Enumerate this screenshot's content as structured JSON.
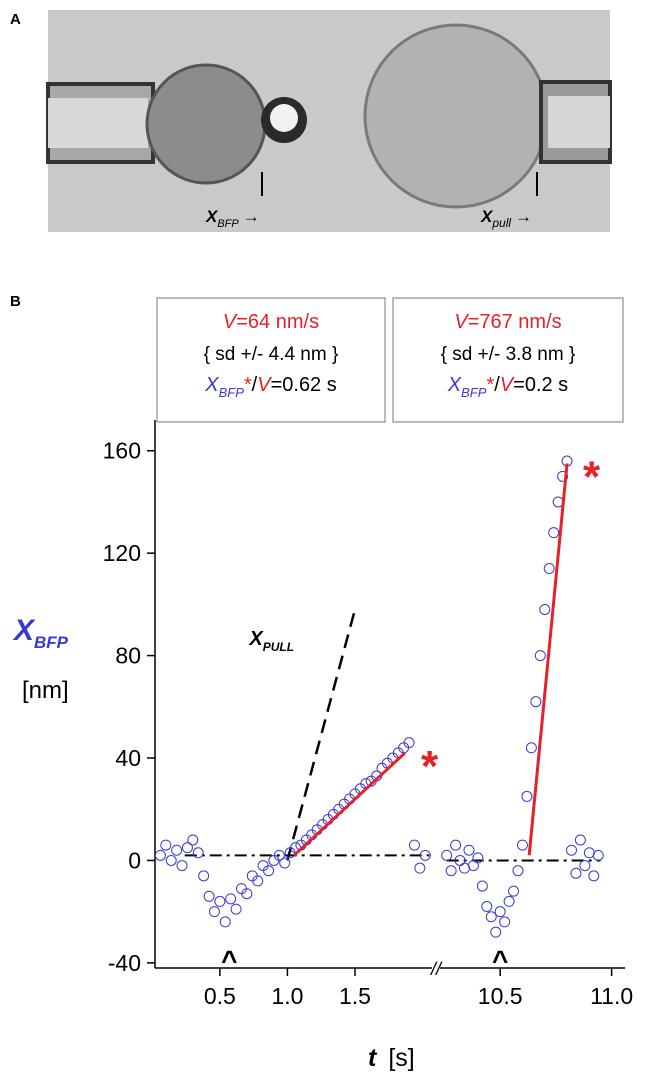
{
  "panel_labels": [
    "A",
    "B"
  ],
  "image_labels": {
    "bfp": [
      "X",
      "BFP",
      "→"
    ],
    "pull": [
      "X",
      "pull",
      "→"
    ]
  },
  "chart_data": {
    "type": "scatter",
    "color": "#3a3ad0",
    "fit_color": "#e8202a",
    "ylabel": [
      "X",
      "BFP"
    ],
    "yunit": "[nm]",
    "xlabel": [
      "t",
      "[s]"
    ],
    "break_label": "//",
    "ylim": [
      -42,
      172
    ],
    "yticks": [
      -40,
      0,
      40,
      80,
      120,
      160
    ],
    "pull_label": [
      "X",
      "PULL"
    ],
    "panels": [
      {
        "xlim": [
          0.02,
          2.07
        ],
        "xticks": [
          0.5,
          {
            "value": 1,
            "label": "1.0"
          },
          1.5
        ],
        "x": [
          0.06,
          0.1,
          0.14,
          0.18,
          0.22,
          0.26,
          0.3,
          0.34,
          0.38,
          0.42,
          0.46,
          0.5,
          0.54,
          0.58,
          0.62,
          0.66,
          0.7,
          0.74,
          0.78,
          0.82,
          0.86,
          0.9,
          0.94,
          0.98,
          1.02,
          1.06,
          1.1,
          1.14,
          1.18,
          1.22,
          1.26,
          1.3,
          1.34,
          1.38,
          1.42,
          1.46,
          1.5,
          1.54,
          1.58,
          1.62,
          1.66,
          1.7,
          1.74,
          1.78,
          1.82,
          1.86,
          1.9,
          1.94,
          1.98,
          2.02
        ],
        "values": [
          2,
          6,
          0,
          4,
          -2,
          5,
          8,
          3,
          -6,
          -14,
          -20,
          -16,
          -24,
          -15,
          -19,
          -11,
          -13,
          -6,
          -8,
          -2,
          -4,
          0,
          2,
          -1,
          3,
          5,
          6,
          8,
          10,
          12,
          14,
          16,
          18,
          20,
          22,
          24,
          26,
          28,
          30,
          31,
          33,
          36,
          38,
          40,
          42,
          44,
          46,
          6,
          -3,
          2
        ],
        "fit": {
          "x": [
            1.05,
            1.87
          ],
          "values": [
            2,
            42
          ]
        },
        "baseline": {
          "x": [
            0.24,
            2.05
          ],
          "values": [
            2,
            2
          ]
        },
        "pull": {
          "x": [
            1.0,
            1.5
          ],
          "values": [
            0,
            98
          ]
        },
        "asterisk": "*",
        "caret": {
          "x": 0.57,
          "label": "^"
        },
        "box": {
          "speed": [
            "V",
            "=64 nm/s"
          ],
          "sd": "{ sd +/- 4.4 nm }",
          "ratio": [
            "X",
            "BFP",
            "*",
            "/",
            "V",
            "=0.62 s"
          ]
        }
      },
      {
        "xlim": [
          10.23,
          11.06
        ],
        "xticks": [
          10.5,
          {
            "value": 11,
            "label": "11.0"
          }
        ],
        "x": [
          10.26,
          10.28,
          10.3,
          10.32,
          10.34,
          10.36,
          10.38,
          10.4,
          10.42,
          10.44,
          10.46,
          10.48,
          10.5,
          10.52,
          10.54,
          10.56,
          10.58,
          10.6,
          10.62,
          10.64,
          10.66,
          10.68,
          10.7,
          10.72,
          10.74,
          10.76,
          10.78,
          10.8,
          10.82,
          10.84,
          10.86,
          10.88,
          10.9,
          10.92,
          10.94
        ],
        "values": [
          2,
          -4,
          6,
          0,
          -3,
          4,
          -2,
          1,
          -10,
          -18,
          -22,
          -28,
          -20,
          -24,
          -16,
          -12,
          -4,
          6,
          25,
          44,
          62,
          80,
          98,
          114,
          128,
          140,
          150,
          156,
          4,
          -5,
          8,
          -2,
          3,
          -6,
          2
        ],
        "fit": {
          "x": [
            10.63,
            10.8
          ],
          "values": [
            2,
            155
          ]
        },
        "baseline": {
          "x": [
            10.26,
            10.95
          ],
          "values": [
            0,
            0
          ]
        },
        "asterisk": "*",
        "caret": {
          "x": 10.5,
          "label": "^"
        },
        "box": {
          "speed": [
            "V",
            "=767 nm/s"
          ],
          "sd": "{ sd +/- 3.8 nm }",
          "ratio": [
            "X",
            "BFP",
            "*",
            "/",
            "V",
            "=0.2 s"
          ]
        }
      }
    ]
  }
}
